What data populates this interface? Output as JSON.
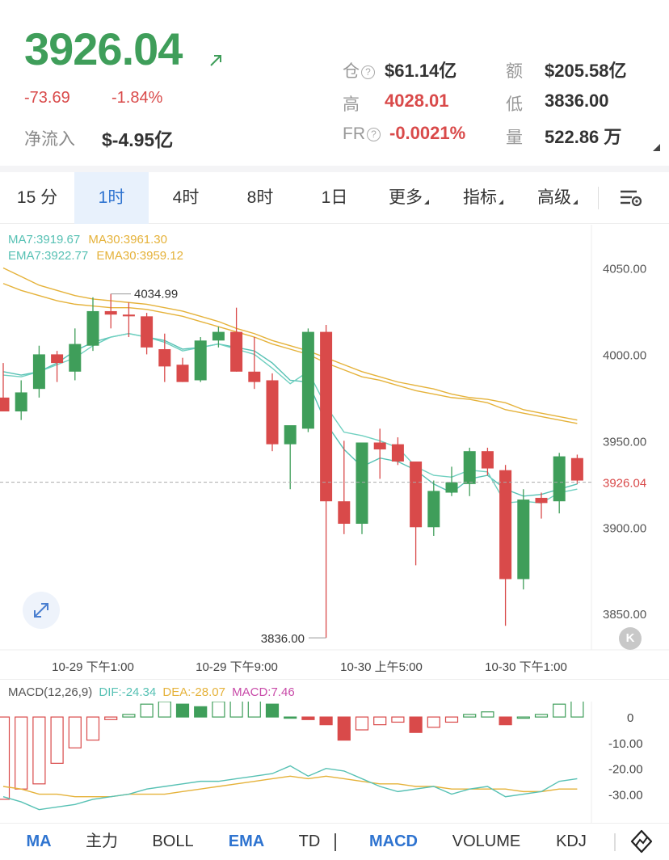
{
  "header": {
    "price": "3926.04",
    "change": "-73.69",
    "change_pct": "-1.84%",
    "net_flow_label": "净流入",
    "net_flow_value": "$-4.95亿",
    "stats": {
      "oi_label": "仓",
      "oi_value": "$61.14亿",
      "amount_label": "额",
      "amount_value": "$205.58亿",
      "high_label": "高",
      "high_value": "4028.01",
      "low_label": "低",
      "low_value": "3836.00",
      "fr_label": "FR",
      "fr_value": "-0.0021%",
      "vol_label": "量",
      "vol_value": "522.86 万"
    },
    "colors": {
      "up": "#3f9e5a",
      "down": "#d94a4a",
      "accent": "#2f74d0"
    }
  },
  "tabs": [
    {
      "label": "15 分",
      "active": false
    },
    {
      "label": "1时",
      "active": true
    },
    {
      "label": "4时",
      "active": false
    },
    {
      "label": "8时",
      "active": false
    },
    {
      "label": "1日",
      "active": false
    },
    {
      "label": "更多",
      "active": false,
      "dropdown": true
    },
    {
      "label": "指标",
      "active": false,
      "dropdown": true
    },
    {
      "label": "高级",
      "active": false,
      "dropdown": true
    }
  ],
  "indicators": {
    "ma7": "MA7:3919.67",
    "ma30": "MA30:3961.30",
    "ema7": "EMA7:3922.77",
    "ema30": "EMA30:3959.12"
  },
  "chart_data": {
    "type": "candlestick",
    "price_axis": {
      "min": 3830,
      "max": 4075,
      "ticks": [
        "4050.00",
        "4000.00",
        "3950.00",
        "3900.00",
        "3850.00"
      ]
    },
    "last_price_label": "3926.04",
    "high_annotation": "4034.99",
    "low_annotation": "3836.00",
    "time_labels": [
      "10-29 下午1:00",
      "10-29 下午9:00",
      "10-30 上午5:00",
      "10-30 下午1:00"
    ],
    "candles": [
      {
        "o": 3975,
        "h": 3995,
        "l": 3967,
        "c": 3967
      },
      {
        "o": 3967,
        "h": 3985,
        "l": 3962,
        "c": 3978
      },
      {
        "o": 3980,
        "h": 4005,
        "l": 3975,
        "c": 4000
      },
      {
        "o": 4000,
        "h": 4002,
        "l": 3984,
        "c": 3995
      },
      {
        "o": 3990,
        "h": 4015,
        "l": 3985,
        "c": 4006
      },
      {
        "o": 4005,
        "h": 4033,
        "l": 4002,
        "c": 4025
      },
      {
        "o": 4025,
        "h": 4035,
        "l": 4015,
        "c": 4023
      },
      {
        "o": 4023,
        "h": 4030,
        "l": 4010,
        "c": 4022
      },
      {
        "o": 4022,
        "h": 4024,
        "l": 4000,
        "c": 4004
      },
      {
        "o": 4003,
        "h": 4012,
        "l": 3984,
        "c": 3993
      },
      {
        "o": 3994,
        "h": 3998,
        "l": 3984,
        "c": 3984
      },
      {
        "o": 3985,
        "h": 4010,
        "l": 3984,
        "c": 4008
      },
      {
        "o": 4008,
        "h": 4016,
        "l": 4004,
        "c": 4013
      },
      {
        "o": 4013,
        "h": 4027,
        "l": 3990,
        "c": 3990
      },
      {
        "o": 3990,
        "h": 4010,
        "l": 3980,
        "c": 3984
      },
      {
        "o": 3985,
        "h": 3989,
        "l": 3944,
        "c": 3948
      },
      {
        "o": 3948,
        "h": 3958,
        "l": 3922,
        "c": 3959
      },
      {
        "o": 3957,
        "h": 4015,
        "l": 3955,
        "c": 4013
      },
      {
        "o": 4013,
        "h": 4017,
        "l": 3836,
        "c": 3915
      },
      {
        "o": 3915,
        "h": 3950,
        "l": 3896,
        "c": 3902
      },
      {
        "o": 3902,
        "h": 3949,
        "l": 3896,
        "c": 3949
      },
      {
        "o": 3949,
        "h": 3957,
        "l": 3928,
        "c": 3945
      },
      {
        "o": 3948,
        "h": 3952,
        "l": 3936,
        "c": 3938
      },
      {
        "o": 3938,
        "h": 3938,
        "l": 3878,
        "c": 3900
      },
      {
        "o": 3900,
        "h": 3927,
        "l": 3895,
        "c": 3921
      },
      {
        "o": 3920,
        "h": 3935,
        "l": 3918,
        "c": 3926
      },
      {
        "o": 3925,
        "h": 3946,
        "l": 3918,
        "c": 3944
      },
      {
        "o": 3944,
        "h": 3946,
        "l": 3930,
        "c": 3934
      },
      {
        "o": 3933,
        "h": 3936,
        "l": 3843,
        "c": 3870
      },
      {
        "o": 3870,
        "h": 3922,
        "l": 3864,
        "c": 3916
      },
      {
        "o": 3917,
        "h": 3920,
        "l": 3905,
        "c": 3914
      },
      {
        "o": 3915,
        "h": 3943,
        "l": 3908,
        "c": 3941
      },
      {
        "o": 3940,
        "h": 3942,
        "l": 3925,
        "c": 3927
      }
    ],
    "ma7": [
      3990,
      3988,
      3990,
      3995,
      4002,
      4007,
      4010,
      4012,
      4010,
      4008,
      4003,
      4004,
      4006,
      4004,
      4002,
      3995,
      3985,
      3984,
      3960,
      3945,
      3935,
      3940,
      3938,
      3933,
      3925,
      3920,
      3928,
      3930,
      3922,
      3918,
      3919,
      3922,
      3925
    ],
    "ema7": [
      3988,
      3987,
      3990,
      3994,
      3998,
      4005,
      4010,
      4012,
      4010,
      4007,
      4002,
      4004,
      4006,
      4003,
      4000,
      3992,
      3983,
      3990,
      3970,
      3955,
      3953,
      3950,
      3946,
      3935,
      3930,
      3929,
      3933,
      3932,
      3914,
      3915,
      3914,
      3920,
      3922
    ],
    "ma30": [
      4050,
      4045,
      4040,
      4037,
      4034,
      4032,
      4031,
      4030,
      4029,
      4027,
      4025,
      4022,
      4019,
      4015,
      4012,
      4008,
      4005,
      4002,
      3998,
      3994,
      3990,
      3987,
      3984,
      3982,
      3980,
      3977,
      3975,
      3974,
      3972,
      3968,
      3966,
      3964,
      3962
    ],
    "ema30": [
      4041,
      4037,
      4034,
      4031,
      4029,
      4028,
      4027,
      4027,
      4026,
      4024,
      4022,
      4019,
      4016,
      4013,
      4010,
      4006,
      4003,
      4000,
      3995,
      3991,
      3987,
      3985,
      3982,
      3979,
      3977,
      3975,
      3974,
      3972,
      3968,
      3966,
      3964,
      3962,
      3960
    ]
  },
  "macd": {
    "legend_main": "MACD(12,26,9)",
    "dif": "DIF:-24.34",
    "dea": "DEA:-28.07",
    "macd": "MACD:7.46",
    "axis": {
      "min": -38,
      "max": 6,
      "ticks": [
        "0",
        "-10.00",
        "-20.00",
        "-30.00"
      ]
    },
    "histogram": [
      -32,
      -28,
      -26,
      -18,
      -12,
      -9,
      -1,
      1,
      5,
      6,
      5,
      4,
      6,
      7,
      7,
      5,
      0,
      -1,
      -3,
      -9,
      -5,
      -3,
      -2,
      -6,
      -4,
      -2,
      1,
      2,
      -3,
      0,
      1,
      5,
      7
    ],
    "dif_line": [
      -31,
      -33,
      -36,
      -35,
      -34,
      -32,
      -31,
      -30,
      -28,
      -27,
      -26,
      -25,
      -25,
      -24,
      -23,
      -22,
      -19,
      -23,
      -20,
      -21,
      -24,
      -27,
      -29,
      -28,
      -27,
      -30,
      -28,
      -27,
      -31,
      -30,
      -29,
      -25,
      -24
    ],
    "dea_line": [
      -27,
      -28,
      -30,
      -30,
      -31,
      -31,
      -31,
      -30,
      -30,
      -30,
      -29,
      -28,
      -27,
      -26,
      -25,
      -24,
      -23,
      -24,
      -23,
      -24,
      -25,
      -26,
      -26,
      -27,
      -27,
      -28,
      -28,
      -28,
      -28,
      -29,
      -29,
      -28,
      -28
    ]
  },
  "bottom_tabs": [
    "MA",
    "主力",
    "BOLL",
    "EMA",
    "TD",
    "MACD",
    "VOLUME",
    "KDJ"
  ]
}
